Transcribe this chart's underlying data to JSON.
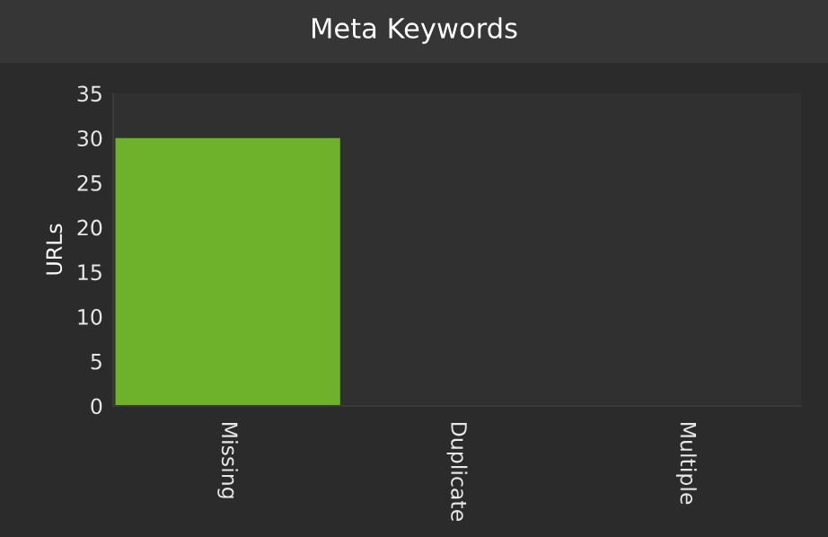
{
  "chart_data": {
    "type": "bar",
    "title": "Meta Keywords",
    "ylabel": "URLs",
    "categories": [
      "Missing",
      "Duplicate",
      "Multiple"
    ],
    "values": [
      30,
      0,
      0
    ],
    "color": "#6eb22c",
    "ylim": [
      0,
      35
    ],
    "yticks": [
      0,
      5,
      10,
      15,
      20,
      25,
      30,
      35
    ],
    "grid": false,
    "legend": false
  }
}
